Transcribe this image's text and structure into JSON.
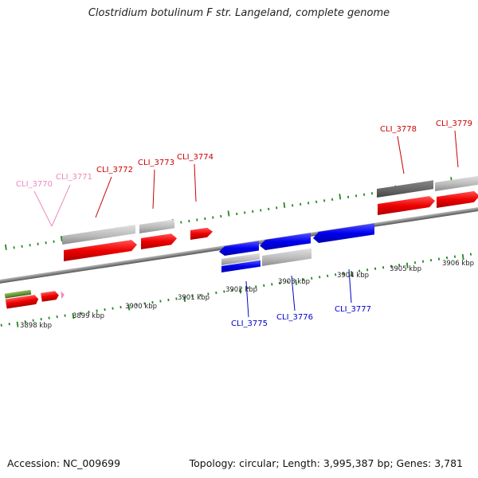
{
  "title": "Clostridium botulinum F str. Langeland, complete genome",
  "footer": {
    "accession": "Accession: NC_009699",
    "topology": "Topology: circular; Length: 3,995,387 bp; Genes: 3,781"
  },
  "colors": {
    "forward_gene": "#ee1111",
    "reverse_gene": "#1111ee",
    "pseudo_gene": "#ee88bb",
    "other_gene": "#669933",
    "rna_gray": "#b8b8b8",
    "rna_dark": "#666666",
    "tick": "#228822",
    "axis": "#888888"
  },
  "scale_labels": [
    "3898 kbp",
    "3899 kbp",
    "3900 kbp",
    "3901 kbp",
    "3902 kbp",
    "3903 kbp",
    "3904 kbp",
    "3905 kbp",
    "3906 kbp"
  ],
  "gene_labels": [
    {
      "text": "CLI_3770",
      "color": "#ee88bb"
    },
    {
      "text": "CLI_3771",
      "color": "#ee88bb"
    },
    {
      "text": "CLI_3772",
      "color": "#cc0000"
    },
    {
      "text": "CLI_3773",
      "color": "#cc0000"
    },
    {
      "text": "CLI_3774",
      "color": "#cc0000"
    },
    {
      "text": "CLI_3778",
      "color": "#cc0000"
    },
    {
      "text": "CLI_3779",
      "color": "#cc0000"
    },
    {
      "text": "CLI_3775",
      "color": "#0000cc"
    },
    {
      "text": "CLI_3776",
      "color": "#0000cc"
    },
    {
      "text": "CLI_3777",
      "color": "#0000cc"
    }
  ]
}
